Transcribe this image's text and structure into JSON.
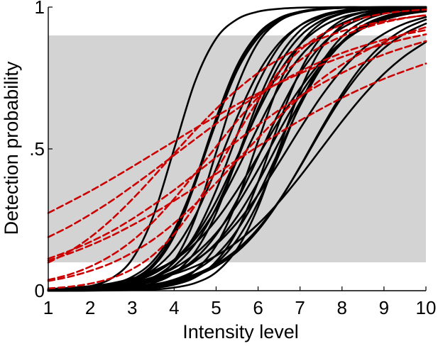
{
  "chart_data": {
    "type": "line",
    "title": "",
    "xlabel": "Intensity level",
    "ylabel": "Detection probability",
    "xlim": [
      1,
      10
    ],
    "ylim": [
      0,
      1
    ],
    "xticks": [
      1,
      2,
      3,
      4,
      5,
      6,
      7,
      8,
      9,
      10
    ],
    "yticks": [
      {
        "value": 0,
        "label": "0"
      },
      {
        "value": 0.5,
        "label": ".5"
      },
      {
        "value": 1,
        "label": "1"
      }
    ],
    "grid": false,
    "legend": "none",
    "shaded_band": {
      "y_min": 0.1,
      "y_max": 0.9,
      "color": "#d3d3d3"
    },
    "colors": {
      "black_series": "#000000",
      "red_series": "#cc0000",
      "band": "#d3d3d3"
    },
    "x_samples": [
      1,
      1.5,
      2,
      2.5,
      3,
      3.5,
      4,
      4.5,
      5,
      5.5,
      6,
      6.5,
      7,
      7.5,
      8,
      8.5,
      9,
      9.5,
      10
    ],
    "series": [
      {
        "color": "#000000",
        "style": "solid",
        "values": [
          0.002,
          0.006,
          0.016,
          0.043,
          0.111,
          0.262,
          0.5,
          0.738,
          0.889,
          0.957,
          0.984,
          0.994,
          0.998,
          0.999,
          1.0,
          1.0,
          1.0,
          1.0,
          1.0
        ]
      },
      {
        "color": "#000000",
        "style": "solid",
        "values": [
          0.001,
          0.003,
          0.007,
          0.017,
          0.04,
          0.093,
          0.204,
          0.389,
          0.608,
          0.794,
          0.906,
          0.961,
          0.984,
          0.994,
          0.998,
          0.999,
          1.0,
          1.0,
          1.0
        ]
      },
      {
        "color": "#000000",
        "style": "solid",
        "values": [
          0.002,
          0.004,
          0.01,
          0.022,
          0.049,
          0.105,
          0.214,
          0.386,
          0.592,
          0.776,
          0.892,
          0.953,
          0.98,
          0.992,
          0.997,
          0.999,
          0.999,
          1.0,
          1.0
        ]
      },
      {
        "color": "#000000",
        "style": "solid",
        "values": [
          0.001,
          0.002,
          0.006,
          0.014,
          0.035,
          0.085,
          0.192,
          0.378,
          0.6,
          0.787,
          0.902,
          0.959,
          0.984,
          0.994,
          0.997,
          0.999,
          1.0,
          1.0,
          1.0
        ]
      },
      {
        "color": "#000000",
        "style": "solid",
        "values": [
          0.0,
          0.001,
          0.002,
          0.005,
          0.014,
          0.039,
          0.106,
          0.255,
          0.487,
          0.719,
          0.875,
          0.95,
          0.981,
          0.993,
          0.997,
          0.999,
          1.0,
          1.0,
          1.0
        ]
      },
      {
        "color": "#000000",
        "style": "solid",
        "values": [
          0.002,
          0.004,
          0.008,
          0.017,
          0.036,
          0.074,
          0.145,
          0.264,
          0.43,
          0.612,
          0.767,
          0.873,
          0.935,
          0.968,
          0.985,
          0.993,
          0.997,
          0.998,
          0.999
        ]
      },
      {
        "color": "#000000",
        "style": "solid",
        "values": [
          0.001,
          0.002,
          0.004,
          0.01,
          0.022,
          0.047,
          0.1,
          0.198,
          0.354,
          0.549,
          0.731,
          0.861,
          0.935,
          0.971,
          0.988,
          0.995,
          0.998,
          0.999,
          1.0
        ]
      },
      {
        "color": "#000000",
        "style": "solid",
        "values": [
          0.0,
          0.001,
          0.002,
          0.005,
          0.011,
          0.027,
          0.062,
          0.137,
          0.273,
          0.467,
          0.668,
          0.823,
          0.917,
          0.963,
          0.984,
          0.993,
          0.997,
          0.999,
          1.0
        ]
      },
      {
        "color": "#000000",
        "style": "solid",
        "values": [
          0.003,
          0.006,
          0.011,
          0.02,
          0.036,
          0.063,
          0.109,
          0.182,
          0.288,
          0.426,
          0.577,
          0.717,
          0.825,
          0.898,
          0.943,
          0.969,
          0.983,
          0.991,
          0.995
        ]
      },
      {
        "color": "#000000",
        "style": "solid",
        "values": [
          0.002,
          0.004,
          0.008,
          0.016,
          0.031,
          0.059,
          0.109,
          0.192,
          0.315,
          0.471,
          0.632,
          0.77,
          0.868,
          0.929,
          0.964,
          0.982,
          0.991,
          0.996,
          0.998
        ]
      },
      {
        "color": "#000000",
        "style": "solid",
        "values": [
          0.001,
          0.002,
          0.005,
          0.01,
          0.021,
          0.043,
          0.087,
          0.165,
          0.292,
          0.462,
          0.643,
          0.796,
          0.897,
          0.952,
          0.978,
          0.99,
          0.996,
          0.998,
          0.999
        ]
      },
      {
        "color": "#000000",
        "style": "solid",
        "values": [
          0.0,
          0.0,
          0.001,
          0.002,
          0.005,
          0.012,
          0.03,
          0.071,
          0.159,
          0.316,
          0.527,
          0.729,
          0.868,
          0.943,
          0.977,
          0.991,
          0.996,
          0.999,
          0.999
        ]
      },
      {
        "color": "#000000",
        "style": "solid",
        "values": [
          0.002,
          0.004,
          0.007,
          0.012,
          0.021,
          0.036,
          0.062,
          0.104,
          0.168,
          0.261,
          0.383,
          0.524,
          0.665,
          0.785,
          0.873,
          0.929,
          0.962,
          0.98,
          0.99
        ]
      },
      {
        "color": "#000000",
        "style": "solid",
        "values": [
          0.001,
          0.002,
          0.005,
          0.009,
          0.017,
          0.033,
          0.062,
          0.113,
          0.197,
          0.319,
          0.471,
          0.629,
          0.766,
          0.864,
          0.926,
          0.961,
          0.98,
          0.99,
          0.995
        ]
      },
      {
        "color": "#000000",
        "style": "solid",
        "values": [
          0.0,
          0.0,
          0.001,
          0.002,
          0.004,
          0.009,
          0.021,
          0.047,
          0.103,
          0.211,
          0.383,
          0.592,
          0.774,
          0.893,
          0.954,
          0.981,
          0.992,
          0.997,
          0.999
        ]
      },
      {
        "color": "#000000",
        "style": "solid",
        "values": [
          0.002,
          0.003,
          0.005,
          0.008,
          0.013,
          0.022,
          0.036,
          0.058,
          0.093,
          0.145,
          0.219,
          0.317,
          0.436,
          0.564,
          0.683,
          0.781,
          0.855,
          0.907,
          0.942
        ]
      },
      {
        "color": "#000000",
        "style": "solid",
        "values": [
          0.001,
          0.002,
          0.003,
          0.006,
          0.011,
          0.021,
          0.039,
          0.071,
          0.125,
          0.213,
          0.339,
          0.494,
          0.652,
          0.785,
          0.878,
          0.935,
          0.967,
          0.983,
          0.992
        ]
      },
      {
        "color": "#000000",
        "style": "solid",
        "values": [
          0.0,
          0.0,
          0.0,
          0.001,
          0.002,
          0.004,
          0.011,
          0.027,
          0.065,
          0.147,
          0.295,
          0.5,
          0.705,
          0.853,
          0.935,
          0.973,
          0.989,
          0.996,
          0.998
        ]
      },
      {
        "color": "#000000",
        "style": "solid",
        "values": [
          0.005,
          0.008,
          0.012,
          0.018,
          0.027,
          0.04,
          0.059,
          0.086,
          0.123,
          0.172,
          0.235,
          0.313,
          0.403,
          0.5,
          0.597,
          0.687,
          0.765,
          0.828,
          0.877
        ]
      },
      {
        "color": "#000000",
        "style": "solid",
        "values": [
          0.001,
          0.002,
          0.004,
          0.006,
          0.011,
          0.018,
          0.031,
          0.052,
          0.086,
          0.137,
          0.213,
          0.315,
          0.438,
          0.57,
          0.694,
          0.797,
          0.873,
          0.924,
          0.956
        ]
      },
      {
        "color": "#000000",
        "style": "solid",
        "values": [
          0.003,
          0.006,
          0.01,
          0.016,
          0.026,
          0.042,
          0.068,
          0.107,
          0.163,
          0.24,
          0.338,
          0.452,
          0.571,
          0.684,
          0.779,
          0.853,
          0.906,
          0.942,
          0.965
        ]
      },
      {
        "color": "#000000",
        "style": "solid",
        "values": [
          0.004,
          0.006,
          0.01,
          0.017,
          0.029,
          0.048,
          0.08,
          0.13,
          0.203,
          0.303,
          0.427,
          0.562,
          0.69,
          0.796,
          0.874,
          0.925,
          0.957,
          0.976,
          0.987
        ]
      },
      {
        "color": "#000000",
        "style": "solid",
        "values": [
          0.001,
          0.001,
          0.002,
          0.003,
          0.006,
          0.012,
          0.025,
          0.049,
          0.096,
          0.18,
          0.311,
          0.48,
          0.657,
          0.8,
          0.896,
          0.95,
          0.977,
          0.99,
          0.995
        ]
      },
      {
        "color": "#000000",
        "style": "solid",
        "values": [
          0.006,
          0.01,
          0.016,
          0.026,
          0.043,
          0.069,
          0.108,
          0.167,
          0.249,
          0.354,
          0.475,
          0.6,
          0.713,
          0.807,
          0.877,
          0.925,
          0.955,
          0.974,
          0.985
        ]
      },
      {
        "color": "#cc0000",
        "style": "dashed",
        "values": [
          0.274,
          0.312,
          0.351,
          0.393,
          0.437,
          0.482,
          0.527,
          0.572,
          0.615,
          0.657,
          0.696,
          0.732,
          0.766,
          0.796,
          0.824,
          0.848,
          0.869,
          0.888,
          0.904
        ]
      },
      {
        "color": "#cc0000",
        "style": "dashed",
        "values": [
          0.189,
          0.226,
          0.269,
          0.316,
          0.368,
          0.422,
          0.478,
          0.534,
          0.589,
          0.641,
          0.69,
          0.734,
          0.773,
          0.808,
          0.838,
          0.863,
          0.885,
          0.904,
          0.919
        ]
      },
      {
        "color": "#cc0000",
        "style": "dashed",
        "values": [
          0.113,
          0.14,
          0.172,
          0.209,
          0.253,
          0.302,
          0.355,
          0.412,
          0.47,
          0.528,
          0.584,
          0.637,
          0.685,
          0.729,
          0.768,
          0.803,
          0.833,
          0.858,
          0.88
        ]
      },
      {
        "color": "#cc0000",
        "style": "dashed",
        "values": [
          0.034,
          0.049,
          0.07,
          0.097,
          0.134,
          0.18,
          0.238,
          0.305,
          0.38,
          0.459,
          0.538,
          0.614,
          0.683,
          0.745,
          0.797,
          0.841,
          0.877,
          0.906,
          0.929
        ]
      },
      {
        "color": "#cc0000",
        "style": "dashed",
        "values": [
          0.038,
          0.057,
          0.085,
          0.124,
          0.176,
          0.243,
          0.324,
          0.414,
          0.508,
          0.599,
          0.682,
          0.754,
          0.813,
          0.861,
          0.897,
          0.925,
          0.946,
          0.961,
          0.972
        ]
      },
      {
        "color": "#cc0000",
        "style": "dashed",
        "values": [
          0.099,
          0.138,
          0.188,
          0.25,
          0.322,
          0.401,
          0.484,
          0.565,
          0.641,
          0.709,
          0.768,
          0.817,
          0.857,
          0.889,
          0.915,
          0.935,
          0.95,
          0.962,
          0.971
        ]
      },
      {
        "color": "#cc0000",
        "style": "dashed",
        "values": [
          0.008,
          0.014,
          0.025,
          0.044,
          0.076,
          0.126,
          0.2,
          0.3,
          0.422,
          0.55,
          0.671,
          0.772,
          0.848,
          0.902,
          0.938,
          0.962,
          0.977,
          0.986,
          0.991
        ]
      },
      {
        "color": "#cc0000",
        "style": "dashed",
        "values": [
          0.106,
          0.131,
          0.16,
          0.193,
          0.231,
          0.272,
          0.317,
          0.364,
          0.412,
          0.461,
          0.509,
          0.556,
          0.6,
          0.641,
          0.68,
          0.715,
          0.747,
          0.775,
          0.801
        ]
      }
    ]
  }
}
